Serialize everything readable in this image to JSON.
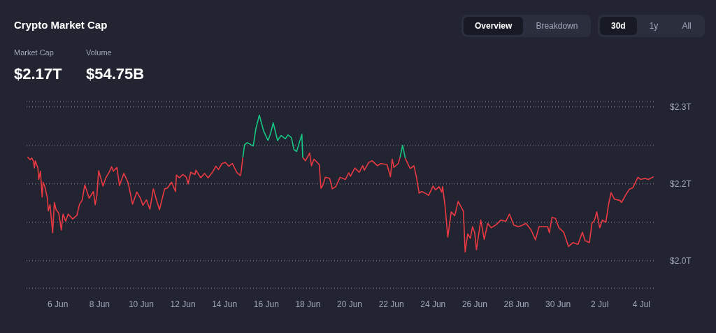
{
  "chart_data": {
    "type": "line",
    "title": "Crypto Market Cap",
    "annotations": [
      "Market Cap",
      "$2.17T",
      "Volume",
      "$54.75B",
      "Overview",
      "Breakdown",
      "30d",
      "1y",
      "All"
    ],
    "x": [
      "--06-04T13:00",
      "--06-04T16:00",
      "--06-04T18:00",
      "--06-04T20:00",
      "--06-04T21:00",
      "--06-04T22:00",
      "--06-05T01:00",
      "--06-05T02:00",
      "--06-05T04:00",
      "--06-05T06:00",
      "--06-05T07:00",
      "--06-05T09:00",
      "--06-05T12:00",
      "--06-05T13:00",
      "--06-05T15:00",
      "--06-05T18:00",
      "--06-05T20:00",
      "--06-05T22:00",
      "--06-06T01:00",
      "--06-06T04:00",
      "--06-06T06:00",
      "--06-06T09:00",
      "--06-06T12:00",
      "--06-06T17:00",
      "--06-06T22:00",
      "--06-07T01:00",
      "--06-07T04:00",
      "--06-07T07:00",
      "--06-07T09:00",
      "--06-07T12:00",
      "--06-07T17:00",
      "--06-07T19:00",
      "--06-07T21:00",
      "--06-07T23:00",
      "--06-08T01:00",
      "--06-08T04:00",
      "--06-08T07:00",
      "--06-08T11:00",
      "--06-08T14:00",
      "--06-08T16:00",
      "--06-08T20:00",
      "--06-08T23:00",
      "--06-09T04:00",
      "--06-09T09:00",
      "--06-09T14:00",
      "--06-09T19:00",
      "--06-09T23:00",
      "--06-10T02:00",
      "--06-10T06:00",
      "--06-10T10:00",
      "--06-10T14:00",
      "--06-10T17:00",
      "--06-10T21:00",
      "--06-11T03:00",
      "--06-11T06:00",
      "--06-11T11:00",
      "--06-11T15:30",
      "--06-11T16:30",
      "--06-11T20:00",
      "--06-12T00:00",
      "--06-12T04:00",
      "--06-12T06:00",
      "--06-12T09:00",
      "--06-12T14:00",
      "--06-12T15:00",
      "--06-12T20:30",
      "--06-13T01:00",
      "--06-13T05:00",
      "--06-13T10:00",
      "--06-13T14:00",
      "--06-13T17:00",
      "--06-13T21:00",
      "--06-14T01:00",
      "--06-14T05:00",
      "--06-14T09:00",
      "--06-14T14:00",
      "--06-14T18:00",
      "--06-14T19:00",
      "--06-14T21:00",
      "--06-14T23:00",
      "--06-15T02:00",
      "--06-15T09:00",
      "--06-15T12:00",
      "--06-15T16:00",
      "--06-15T21:00",
      "--06-16T02:00",
      "--06-16T05:00",
      "--06-16T08:00",
      "--06-16T13:00",
      "--06-16T17:00",
      "--06-16T22:00",
      "--06-17T01:00",
      "--06-17T05:00",
      "--06-17T08:00",
      "--06-17T11:00",
      "--06-17T14:00",
      "--06-17T17:00",
      "--06-17T18:00",
      "--06-17T21:00",
      "--06-18T02:00",
      "--06-18T04:00",
      "--06-18T07:00",
      "--06-18T13:00",
      "--06-18T15:00",
      "--06-18T17:00",
      "--06-18T20:00",
      "--06-19T01:00",
      "--06-19T04:00",
      "--06-19T08:00",
      "--06-19T13:00",
      "--06-19T19:00",
      "--06-19T23:00",
      "--06-20T01:00",
      "--06-20T06:00",
      "--06-20T11:00",
      "--06-20T15:00",
      "--06-20T17:00",
      "--06-20T22:00",
      "--06-21T02:00",
      "--06-21T08:00",
      "--06-21T12:00",
      "--06-21T19:00",
      "--06-21T23:00",
      "--06-22T01:00",
      "--06-22T03:00",
      "--06-22T08:00",
      "--06-22T10:00",
      "--06-22T13:00",
      "--06-22T16:00",
      "--06-22T20:00",
      "--06-22T22:00",
      "--06-23T02:00",
      "--06-23T05:00",
      "--06-23T08:00",
      "--06-23T11:00",
      "--06-23T15:00",
      "--06-23T19:00",
      "--06-24T00:00",
      "--06-24T03:00",
      "--06-24T07:00",
      "--06-24T10:00",
      "--06-24T11:00",
      "--06-24T14:00",
      "--06-24T17:00",
      "--06-24T21:00",
      "--06-25T01:00",
      "--06-25T05:00",
      "--06-25T11:00",
      "--06-25T13:00",
      "--06-25T16:00",
      "--06-25T19:00",
      "--06-25T21:30",
      "--06-26T00:00",
      "--06-26T02:00",
      "--06-26T07:00",
      "--06-26T11:00",
      "--06-26T15:00",
      "--06-26T19:00",
      "--06-27T01:00",
      "--06-27T06:00",
      "--06-27T12:00",
      "--06-27T16:00",
      "--06-27T21:00",
      "--06-28T02:00",
      "--06-28T06:00",
      "--06-28T11:00",
      "--06-28T17:00",
      "--06-28T22:00",
      "--06-29T02:00",
      "--06-29T06:00",
      "--06-29T12:00",
      "--06-29T14:00",
      "--06-29T17:00",
      "--06-29T21:00",
      "--06-30T01:00",
      "--06-30T06:30",
      "--06-30T12:00",
      "--06-30T17:00",
      "--06-30T23:00",
      "--07-01T04:00",
      "--07-01T07:00",
      "--07-01T12:00",
      "--07-01T15:00",
      "--07-01T18:00",
      "--07-01T20:30",
      "--07-02T00:00",
      "--07-02T03:00",
      "--07-02T07:00",
      "--07-02T10:00",
      "--07-02T13:00",
      "--07-02T17:00",
      "--07-02T23:00",
      "--07-03T01:00",
      "--07-03T05:30",
      "--07-03T10:00",
      "--07-03T14:00",
      "--07-03T20:00",
      "--07-03T23:00",
      "--07-04T04:00",
      "--07-04T08:00",
      "--07-04T14:00"
    ],
    "series": [
      {
        "color": "#ea3943",
        "values": [
          2.209,
          2.204,
          2.207,
          2.201,
          2.189,
          2.202,
          2.189,
          2.168,
          2.183,
          2.136,
          2.163,
          2.155,
          2.134,
          2.111,
          2.122,
          2.071,
          2.126,
          2.113,
          2.107,
          2.076,
          2.105,
          2.092,
          2.105,
          2.096,
          2.103,
          2.123,
          2.13,
          2.158,
          2.149,
          2.134,
          2.146,
          2.122,
          2.139,
          2.184,
          2.173,
          2.156,
          2.17,
          2.181,
          2.191,
          2.183,
          2.19,
          2.157,
          2.179,
          2.162,
          2.123,
          2.145,
          2.134,
          2.121,
          2.131,
          2.114,
          2.151,
          2.134,
          2.113,
          2.151,
          2.152,
          2.163,
          2.146,
          2.176,
          2.171,
          2.177,
          2.172,
          2.16,
          2.181,
          2.177,
          2.185,
          2.171,
          2.179,
          2.171,
          2.181,
          2.192,
          2.186,
          2.197,
          2.199,
          2.192,
          2.197,
          2.181,
          2.175,
          2.181,
          2.208,
          null,
          null,
          null,
          null,
          null,
          null,
          null,
          null,
          null,
          null,
          null,
          null,
          null,
          null,
          null,
          null,
          null,
          null,
          2.208,
          2.202,
          2.216,
          2.193,
          2.205,
          2.195,
          2.152,
          2.157,
          2.172,
          2.17,
          2.151,
          2.155,
          2.172,
          2.168,
          2.18,
          2.174,
          2.189,
          2.181,
          2.193,
          2.185,
          2.199,
          2.202,
          2.193,
          2.197,
          2.195,
          2.173,
          2.205,
          2.19,
          2.197,
          2.208,
          null,
          2.207,
          2.193,
          2.188,
          2.193,
          2.172,
          2.143,
          2.146,
          2.143,
          2.139,
          2.156,
          2.149,
          2.155,
          2.145,
          2.155,
          2.118,
          2.063,
          2.109,
          2.102,
          2.128,
          2.11,
          2.036,
          2.069,
          2.061,
          2.082,
          2.071,
          2.04,
          2.094,
          2.059,
          2.088,
          2.08,
          2.086,
          2.094,
          2.092,
          2.105,
          2.085,
          2.082,
          2.084,
          2.088,
          2.076,
          2.058,
          2.082,
          2.082,
          2.082,
          2.071,
          2.099,
          2.097,
          2.08,
          2.072,
          2.046,
          2.053,
          2.05,
          2.072,
          2.057,
          2.053,
          2.088,
          2.094,
          2.109,
          2.08,
          2.094,
          2.09,
          2.121,
          2.144,
          2.132,
          2.13,
          2.126,
          2.139,
          2.15,
          2.153,
          2.172,
          2.168,
          2.17,
          2.168,
          2.173
        ]
      },
      {
        "color": "#16c784",
        "x": [
          "--06-14T21:00",
          "--06-14T23:00",
          "--06-15T02:00",
          "--06-15T09:00",
          "--06-15T12:00",
          "--06-15T16:00",
          "--06-15T21:00",
          "--06-16T02:00",
          "--06-16T05:00",
          "--06-16T08:00",
          "--06-16T13:00",
          "--06-16T17:00",
          "--06-16T22:00",
          "--06-17T01:00",
          "--06-17T05:00",
          "--06-17T08:00",
          "--06-17T11:00",
          "--06-17T14:00",
          "--06-17T17:00",
          "--06-17T18:00",
          "--06-20T00:00",
          "--06-22T10:00",
          "--06-22T13:00",
          "--06-22T16:00"
        ],
        "values": [
          2.208,
          2.231,
          2.235,
          2.229,
          2.26,
          2.285,
          2.256,
          2.239,
          2.252,
          2.271,
          2.239,
          2.248,
          2.242,
          2.249,
          2.244,
          2.222,
          2.219,
          2.235,
          2.25,
          2.208,
          null,
          2.208,
          2.23,
          2.207
        ]
      }
    ],
    "xlim": [
      "--06-04T12:00",
      "--07-04T15:00"
    ],
    "xticks": [
      {
        "value": "--06-06",
        "label": "6 Jun"
      },
      {
        "value": "--06-08",
        "label": "8 Jun"
      },
      {
        "value": "--06-10",
        "label": "10 Jun"
      },
      {
        "value": "--06-12",
        "label": "12 Jun"
      },
      {
        "value": "--06-14",
        "label": "14 Jun"
      },
      {
        "value": "--06-16",
        "label": "16 Jun"
      },
      {
        "value": "--06-18",
        "label": "18 Jun"
      },
      {
        "value": "--06-20",
        "label": "20 Jun"
      },
      {
        "value": "--06-22",
        "label": "22 Jun"
      },
      {
        "value": "--06-24",
        "label": "24 Jun"
      },
      {
        "value": "--06-26",
        "label": "26 Jun"
      },
      {
        "value": "--06-28",
        "label": "28 Jun"
      },
      {
        "value": "--06-30",
        "label": "30 Jun"
      },
      {
        "value": "--07-02",
        "label": "2 Jul"
      },
      {
        "value": "--07-04",
        "label": "4 Jul"
      }
    ],
    "ylim": [
      1.97,
      2.31
    ],
    "yticks": [
      {
        "value": 2.3,
        "label": "$2.3T"
      },
      {
        "value": 2.23,
        "label": null
      },
      {
        "value": 2.16,
        "label": "$2.2T"
      },
      {
        "value": 2.09,
        "label": null
      },
      {
        "value": 2.02,
        "label": "$2.0T"
      }
    ],
    "grid": "y",
    "legend": false,
    "marker": "none",
    "line_style": "solid"
  }
}
